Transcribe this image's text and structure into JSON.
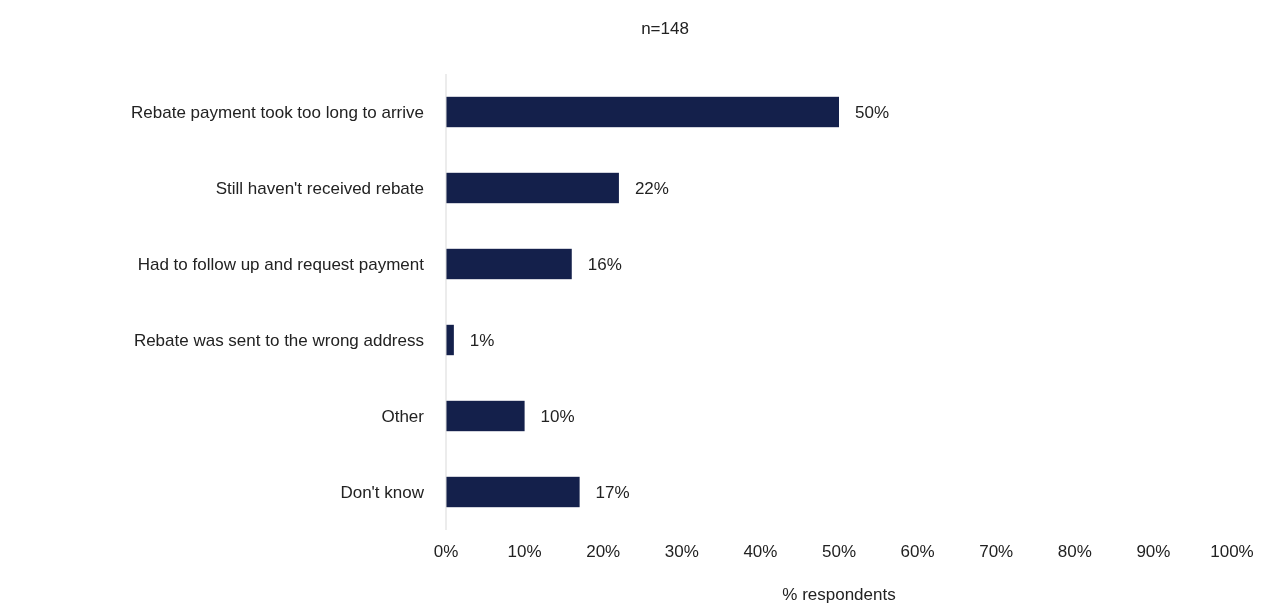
{
  "chart_data": {
    "type": "bar",
    "orientation": "horizontal",
    "title": "n=148",
    "xlabel": "% respondents",
    "categories": [
      "Rebate payment took too long to arrive",
      "Still haven't received rebate",
      "Had to follow up and request payment",
      "Rebate was sent to the wrong address",
      "Other",
      "Don't know"
    ],
    "values": [
      50,
      22,
      16,
      1,
      10,
      17
    ],
    "value_labels": [
      "50%",
      "22%",
      "16%",
      "1%",
      "10%",
      "17%"
    ],
    "color": "#14204b",
    "xlim": [
      0,
      100
    ],
    "xticks": [
      {
        "value": 0,
        "label": "0%"
      },
      {
        "value": 10,
        "label": "10%"
      },
      {
        "value": 20,
        "label": "20%"
      },
      {
        "value": 30,
        "label": "30%"
      },
      {
        "value": 40,
        "label": "40%"
      },
      {
        "value": 50,
        "label": "50%"
      },
      {
        "value": 60,
        "label": "60%"
      },
      {
        "value": 70,
        "label": "70%"
      },
      {
        "value": 80,
        "label": "80%"
      },
      {
        "value": 90,
        "label": "90%"
      },
      {
        "value": 100,
        "label": "100%"
      }
    ],
    "grid": false
  }
}
